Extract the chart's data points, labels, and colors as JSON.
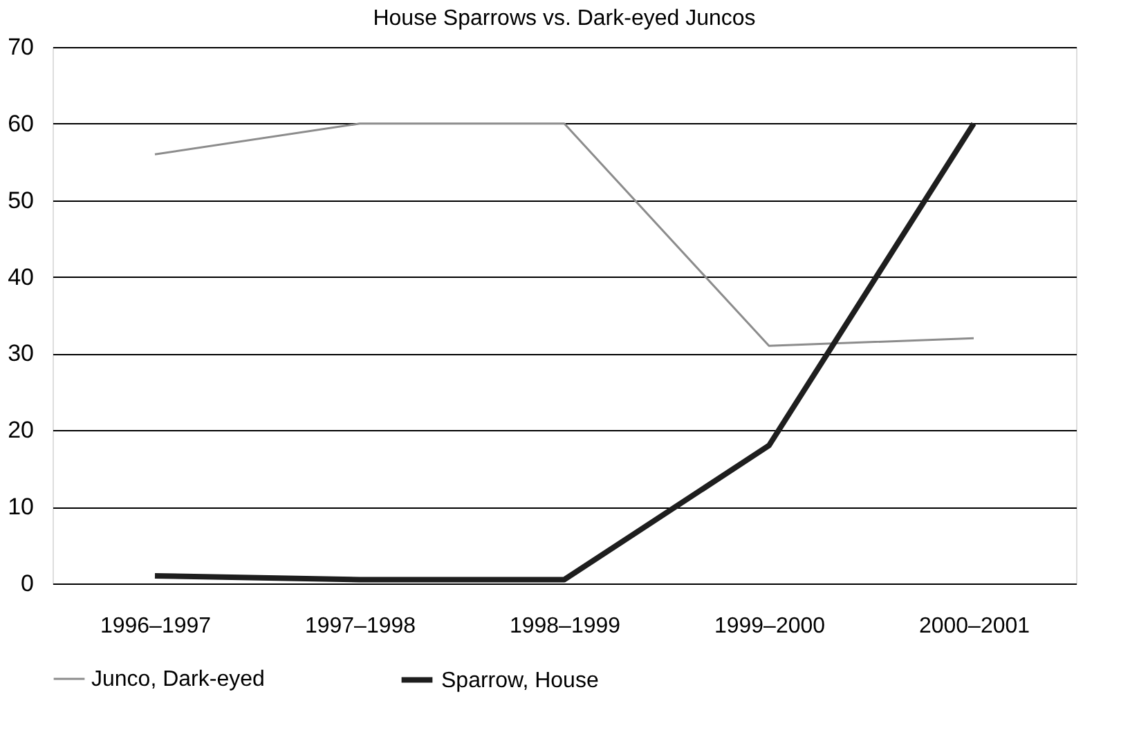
{
  "chart_data": {
    "type": "line",
    "title": "House Sparrows vs. Dark-eyed Juncos",
    "categories": [
      "1996–1997",
      "1997–1998",
      "1998–1999",
      "1999–2000",
      "2000–2001"
    ],
    "series": [
      {
        "name": "Junco, Dark-eyed",
        "color": "#8c8c8c",
        "values": [
          56,
          60,
          60,
          31,
          32
        ]
      },
      {
        "name": "Sparrow, House",
        "color": "#1e1e1e",
        "values": [
          1,
          0.5,
          0.5,
          18,
          60
        ]
      }
    ],
    "ylim": [
      0,
      70
    ],
    "yticks": [
      0,
      10,
      20,
      30,
      40,
      50,
      60,
      70
    ],
    "grid": "y",
    "legend": "bottom",
    "marker": "none",
    "line_style": "solid"
  }
}
